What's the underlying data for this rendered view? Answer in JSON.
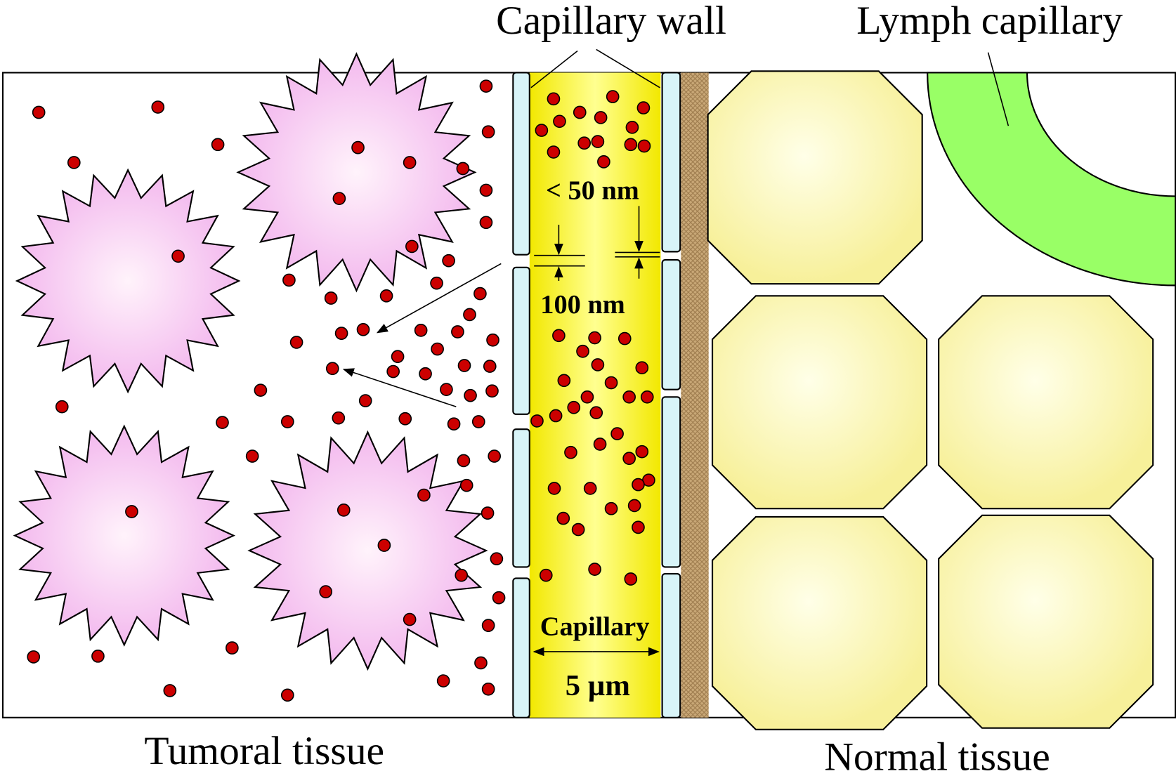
{
  "labels": {
    "capillary_wall": "Capillary wall",
    "lymph_capillary": "Lymph capillary",
    "pore_small": "< 50 nm",
    "pore_large": "100 nm",
    "capillary": "Capillary",
    "capillary_width": "5 µm",
    "tumoral_tissue": "Tumoral tissue",
    "normal_tissue": "Normal tissue"
  }
}
